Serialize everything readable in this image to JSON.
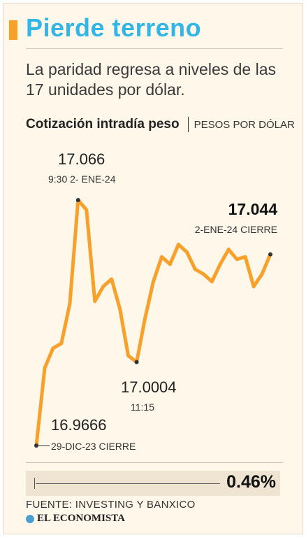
{
  "header": {
    "title": "Pierde terreno",
    "subtitle": "La paridad regresa a niveles de las 17 unidades por dólar."
  },
  "chart_header": {
    "title": "Cotización intradía peso",
    "unit": "PESOS POR DÓLAR"
  },
  "chart_data": {
    "type": "line",
    "title": "Cotización intradía peso",
    "ylabel": "PESOS POR DÓLAR",
    "ylim": [
      16.9666,
      17.066
    ],
    "color": "#f7a02a",
    "series": [
      {
        "values": [
          16.9666,
          16.998,
          17.006,
          17.008,
          17.024,
          17.066,
          17.062,
          17.025,
          17.031,
          17.034,
          17.022,
          17.003,
          17.0004,
          17.018,
          17.033,
          17.043,
          17.04,
          17.048,
          17.045,
          17.038,
          17.036,
          17.033,
          17.04,
          17.046,
          17.042,
          17.043,
          17.031,
          17.036,
          17.044
        ]
      }
    ],
    "annotations": [
      {
        "id": "start",
        "value": "16.9666",
        "label": "29-DIC-23 CIERRE"
      },
      {
        "id": "max",
        "value": "17.066",
        "label": "9:30 2- ENE-24"
      },
      {
        "id": "min",
        "value": "17.0004",
        "label": "11:15"
      },
      {
        "id": "end",
        "value": "17.044",
        "label": "2-ENE-24 CIERRE"
      }
    ]
  },
  "footer": {
    "change": "0.46%",
    "source": "FUENTE: INVESTING Y BANXICO",
    "brand": "EL ECONOMISTA",
    "colors": {
      "accent": "#f7a02a",
      "title": "#33b6e6",
      "background": "#fff7ea"
    }
  }
}
